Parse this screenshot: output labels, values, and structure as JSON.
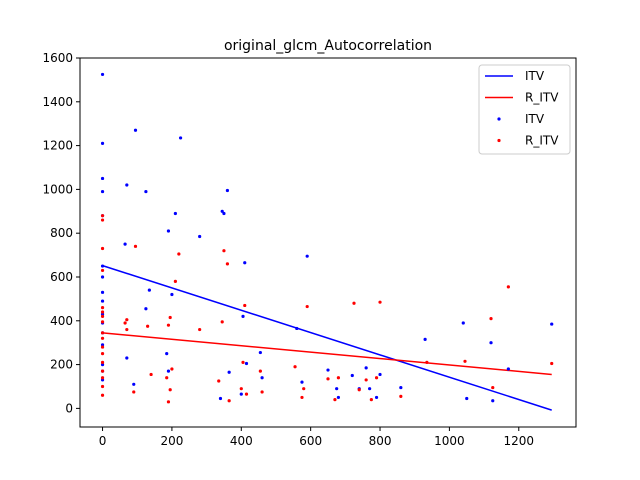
{
  "chart_data": {
    "type": "scatter",
    "title": "original_glcm_Autocorrelation",
    "xlabel": "",
    "ylabel": "",
    "xlim": [
      -65,
      1365
    ],
    "ylim": [
      -85,
      1600
    ],
    "xticks": [
      0,
      200,
      400,
      600,
      800,
      1000,
      1200
    ],
    "yticks": [
      0,
      200,
      400,
      600,
      800,
      1000,
      1200,
      1400,
      1600
    ],
    "legend_position": "top-right",
    "legend": [
      {
        "label": "ITV",
        "kind": "line",
        "color": "#0000ff"
      },
      {
        "label": "R_ITV",
        "kind": "line",
        "color": "#ff0000"
      },
      {
        "label": "ITV",
        "kind": "marker",
        "color": "#0000ff"
      },
      {
        "label": "R_ITV",
        "kind": "marker",
        "color": "#ff0000"
      }
    ],
    "series": [
      {
        "name": "ITV",
        "kind": "line",
        "color": "#0000ff",
        "x": [
          0,
          1295
        ],
        "y": [
          652,
          -8
        ]
      },
      {
        "name": "R_ITV",
        "kind": "line",
        "color": "#ff0000",
        "x": [
          0,
          1295
        ],
        "y": [
          345,
          155
        ]
      },
      {
        "name": "ITV",
        "kind": "scatter",
        "color": "#0000ff",
        "points": [
          [
            0,
            1525
          ],
          [
            0,
            1210
          ],
          [
            0,
            1050
          ],
          [
            0,
            990
          ],
          [
            0,
            880
          ],
          [
            0,
            650
          ],
          [
            0,
            600
          ],
          [
            0,
            530
          ],
          [
            0,
            490
          ],
          [
            0,
            430
          ],
          [
            0,
            390
          ],
          [
            0,
            345
          ],
          [
            0,
            290
          ],
          [
            0,
            200
          ],
          [
            0,
            170
          ],
          [
            0,
            130
          ],
          [
            65,
            750
          ],
          [
            70,
            1020
          ],
          [
            70,
            230
          ],
          [
            90,
            110
          ],
          [
            95,
            1270
          ],
          [
            125,
            990
          ],
          [
            125,
            455
          ],
          [
            135,
            540
          ],
          [
            185,
            250
          ],
          [
            190,
            810
          ],
          [
            190,
            170
          ],
          [
            200,
            520
          ],
          [
            210,
            890
          ],
          [
            225,
            1235
          ],
          [
            280,
            785
          ],
          [
            340,
            45
          ],
          [
            345,
            900
          ],
          [
            350,
            890
          ],
          [
            360,
            995
          ],
          [
            365,
            165
          ],
          [
            400,
            65
          ],
          [
            405,
            420
          ],
          [
            410,
            665
          ],
          [
            415,
            205
          ],
          [
            455,
            255
          ],
          [
            460,
            140
          ],
          [
            560,
            365
          ],
          [
            575,
            120
          ],
          [
            590,
            695
          ],
          [
            650,
            175
          ],
          [
            675,
            90
          ],
          [
            680,
            50
          ],
          [
            720,
            150
          ],
          [
            740,
            90
          ],
          [
            760,
            185
          ],
          [
            770,
            90
          ],
          [
            790,
            50
          ],
          [
            800,
            155
          ],
          [
            860,
            95
          ],
          [
            930,
            315
          ],
          [
            1040,
            390
          ],
          [
            1050,
            45
          ],
          [
            1120,
            300
          ],
          [
            1125,
            35
          ],
          [
            1170,
            180
          ],
          [
            1295,
            385
          ]
        ]
      },
      {
        "name": "R_ITV",
        "kind": "scatter",
        "color": "#ff0000",
        "points": [
          [
            0,
            880
          ],
          [
            0,
            860
          ],
          [
            0,
            730
          ],
          [
            0,
            630
          ],
          [
            0,
            460
          ],
          [
            0,
            440
          ],
          [
            0,
            420
          ],
          [
            0,
            395
          ],
          [
            0,
            345
          ],
          [
            0,
            320
          ],
          [
            0,
            280
          ],
          [
            0,
            250
          ],
          [
            0,
            210
          ],
          [
            0,
            170
          ],
          [
            0,
            140
          ],
          [
            0,
            100
          ],
          [
            0,
            60
          ],
          [
            65,
            390
          ],
          [
            70,
            405
          ],
          [
            70,
            360
          ],
          [
            90,
            75
          ],
          [
            95,
            740
          ],
          [
            130,
            375
          ],
          [
            140,
            155
          ],
          [
            185,
            140
          ],
          [
            190,
            380
          ],
          [
            190,
            30
          ],
          [
            195,
            415
          ],
          [
            195,
            85
          ],
          [
            200,
            180
          ],
          [
            210,
            580
          ],
          [
            220,
            705
          ],
          [
            280,
            360
          ],
          [
            335,
            125
          ],
          [
            345,
            395
          ],
          [
            350,
            720
          ],
          [
            360,
            660
          ],
          [
            365,
            35
          ],
          [
            400,
            90
          ],
          [
            405,
            210
          ],
          [
            410,
            470
          ],
          [
            415,
            65
          ],
          [
            455,
            170
          ],
          [
            460,
            75
          ],
          [
            555,
            190
          ],
          [
            575,
            50
          ],
          [
            580,
            90
          ],
          [
            590,
            465
          ],
          [
            650,
            135
          ],
          [
            670,
            40
          ],
          [
            680,
            140
          ],
          [
            725,
            480
          ],
          [
            740,
            85
          ],
          [
            760,
            130
          ],
          [
            775,
            40
          ],
          [
            790,
            140
          ],
          [
            800,
            485
          ],
          [
            860,
            55
          ],
          [
            935,
            210
          ],
          [
            1045,
            215
          ],
          [
            1120,
            410
          ],
          [
            1125,
            95
          ],
          [
            1170,
            555
          ],
          [
            1295,
            205
          ]
        ]
      }
    ]
  }
}
